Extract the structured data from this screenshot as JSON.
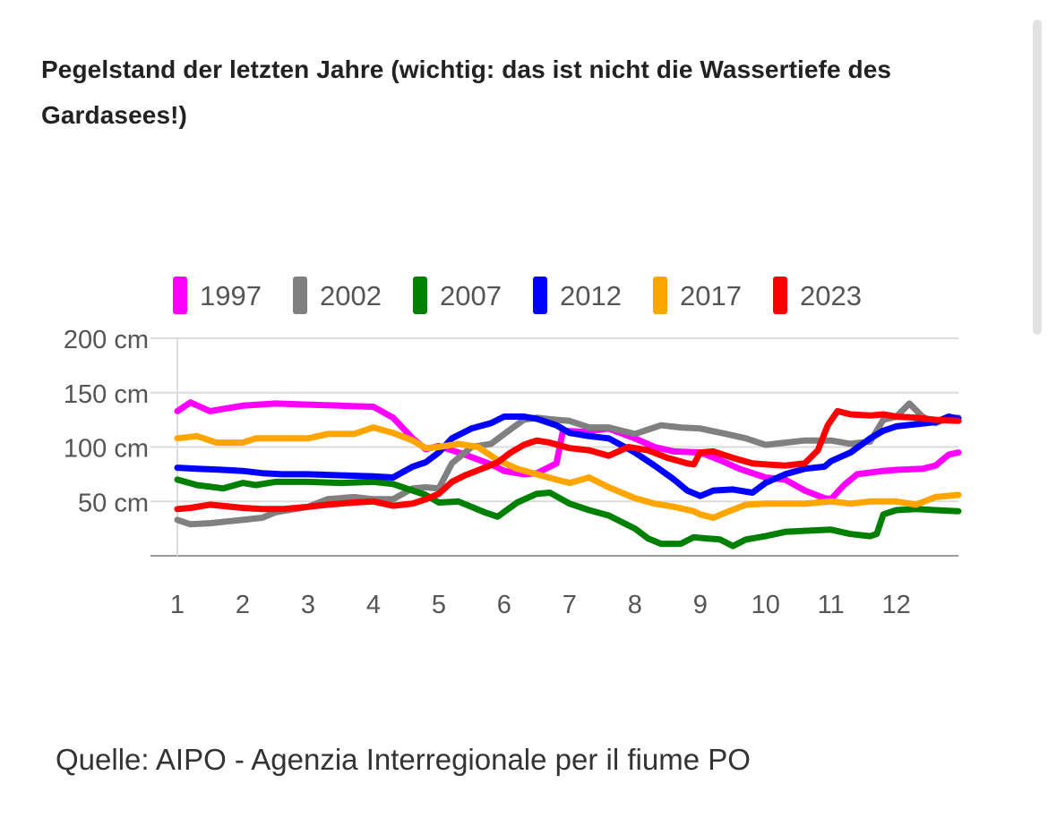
{
  "title": "Pegelstand der letzten Jahre (wichtig: das ist nicht die Wassertiefe des Gardasees!)",
  "source": "Quelle: AIPO - Agenzia Interregionale per il fiume PO",
  "chart_data": {
    "type": "line",
    "title": "Pegelstand der letzten Jahre (wichtig: das ist nicht die Wassertiefe des Gardasees!)",
    "xlabel": "",
    "ylabel": "",
    "xlim": [
      1,
      12.95
    ],
    "ylim": [
      0,
      200
    ],
    "x_ticks": [
      1,
      2,
      3,
      4,
      5,
      6,
      7,
      8,
      9,
      10,
      11,
      12
    ],
    "x_tick_labels": [
      "1",
      "2",
      "3",
      "4",
      "5",
      "6",
      "7",
      "8",
      "9",
      "10",
      "11",
      "12"
    ],
    "y_ticks": [
      50,
      100,
      150,
      200
    ],
    "y_tick_labels": [
      "50 cm",
      "100 cm",
      "150 cm",
      "200 cm"
    ],
    "grid": true,
    "legend_position": "top",
    "series": [
      {
        "name": "1997",
        "color": "#ff00ff",
        "x": [
          1,
          1.2,
          1.5,
          2,
          2.5,
          3,
          3.5,
          4,
          4.3,
          4.6,
          4.8,
          5,
          5.4,
          5.8,
          6,
          6.3,
          6.5,
          6.8,
          6.9,
          7.2,
          7.6,
          8,
          8.3,
          8.6,
          9,
          9.3,
          9.6,
          10,
          10.3,
          10.6,
          10.9,
          11,
          11.2,
          11.4,
          11.8,
          12,
          12.4,
          12.6,
          12.8,
          12.95
        ],
        "y": [
          133,
          141,
          133,
          138,
          140,
          139,
          138,
          137,
          127,
          108,
          98,
          101,
          93,
          84,
          78,
          75,
          76,
          85,
          115,
          114,
          117,
          108,
          100,
          96,
          95,
          88,
          80,
          72,
          70,
          60,
          53,
          52,
          65,
          75,
          78,
          79,
          80,
          83,
          93,
          95
        ]
      },
      {
        "name": "2002",
        "color": "#808080",
        "x": [
          1,
          1.2,
          1.5,
          2,
          2.3,
          2.5,
          3,
          3.3,
          3.7,
          4,
          4.3,
          4.6,
          4.8,
          5,
          5.2,
          5.5,
          5.8,
          6,
          6.3,
          6.5,
          6.8,
          7,
          7.3,
          7.6,
          8,
          8.4,
          8.7,
          9,
          9.4,
          9.7,
          10,
          10.3,
          10.6,
          11,
          11.3,
          11.6,
          11.8,
          12,
          12.2,
          12.4,
          12.6,
          12.8,
          12.95
        ],
        "y": [
          33,
          29,
          30,
          33,
          35,
          40,
          45,
          52,
          54,
          52,
          52,
          62,
          63,
          62,
          85,
          100,
          103,
          112,
          125,
          127,
          125,
          124,
          118,
          118,
          112,
          120,
          118,
          117,
          112,
          108,
          102,
          104,
          106,
          106,
          103,
          105,
          125,
          128,
          140,
          128,
          122,
          127,
          127
        ]
      },
      {
        "name": "2007",
        "color": "#008000",
        "x": [
          1,
          1.3,
          1.7,
          2,
          2.2,
          2.5,
          3,
          3.5,
          4,
          4.3,
          4.8,
          5,
          5.3,
          5.7,
          5.9,
          6.2,
          6.5,
          6.7,
          7,
          7.3,
          7.6,
          8,
          8.2,
          8.4,
          8.6,
          8.7,
          8.9,
          9.1,
          9.3,
          9.5,
          9.7,
          10,
          10.3,
          10.6,
          11,
          11.3,
          11.6,
          11.7,
          11.8,
          12,
          12.3,
          12.6,
          12.95
        ],
        "y": [
          70,
          65,
          62,
          67,
          65,
          68,
          68,
          67,
          68,
          66,
          56,
          49,
          50,
          40,
          36,
          49,
          57,
          58,
          48,
          42,
          37,
          25,
          16,
          11,
          11,
          11,
          17,
          16,
          15,
          9,
          15,
          18,
          22,
          23,
          24,
          20,
          18,
          20,
          38,
          42,
          43,
          42,
          41
        ]
      },
      {
        "name": "2012",
        "color": "#0000ff",
        "x": [
          1,
          1.3,
          1.7,
          2,
          2.3,
          2.6,
          3,
          3.5,
          4,
          4.3,
          4.6,
          4.8,
          5,
          5.2,
          5.5,
          5.8,
          6,
          6.3,
          6.5,
          6.8,
          7,
          7.3,
          7.6,
          8,
          8.3,
          8.6,
          8.8,
          9,
          9.2,
          9.5,
          9.8,
          10,
          10.3,
          10.6,
          10.9,
          11,
          11.3,
          11.6,
          11.8,
          12,
          12.3,
          12.6,
          12.8,
          12.95
        ],
        "y": [
          81,
          80,
          79,
          78,
          76,
          75,
          75,
          74,
          73,
          72,
          82,
          86,
          95,
          108,
          117,
          122,
          128,
          128,
          126,
          120,
          113,
          110,
          108,
          95,
          83,
          70,
          60,
          55,
          60,
          61,
          58,
          67,
          75,
          80,
          82,
          87,
          95,
          108,
          115,
          119,
          121,
          123,
          128,
          126
        ]
      },
      {
        "name": "2017",
        "color": "#ffa500",
        "x": [
          1,
          1.3,
          1.6,
          2,
          2.2,
          2.5,
          3,
          3.3,
          3.7,
          4,
          4.3,
          4.6,
          4.8,
          5,
          5.3,
          5.6,
          5.9,
          6.2,
          6.5,
          6.8,
          7,
          7.3,
          7.6,
          8,
          8.3,
          8.6,
          8.9,
          9,
          9.2,
          9.4,
          9.7,
          10,
          10.3,
          10.6,
          11,
          11.3,
          11.6,
          11.8,
          12,
          12.3,
          12.6,
          12.95
        ],
        "y": [
          108,
          110,
          104,
          104,
          108,
          108,
          108,
          112,
          112,
          118,
          113,
          106,
          99,
          100,
          103,
          100,
          88,
          80,
          75,
          70,
          67,
          72,
          63,
          53,
          48,
          45,
          41,
          38,
          35,
          40,
          47,
          48,
          48,
          48,
          50,
          48,
          50,
          50,
          50,
          47,
          54,
          56
        ]
      },
      {
        "name": "2023",
        "color": "#ff0000",
        "x": [
          1,
          1.2,
          1.5,
          2,
          2.3,
          2.6,
          3,
          3.3,
          3.7,
          4,
          4.3,
          4.6,
          4.8,
          5,
          5.2,
          5.4,
          5.7,
          5.9,
          6.1,
          6.3,
          6.5,
          6.7,
          7,
          7.3,
          7.6,
          7.9,
          8.2,
          8.5,
          8.8,
          8.9,
          9,
          9.2,
          9.5,
          9.8,
          10,
          10.3,
          10.6,
          10.8,
          10.95,
          11.1,
          11.3,
          11.6,
          11.8,
          12,
          12.3,
          12.6,
          12.95
        ],
        "y": [
          43,
          44,
          47,
          44,
          43,
          43,
          45,
          47,
          49,
          50,
          46,
          48,
          52,
          57,
          68,
          74,
          81,
          86,
          95,
          102,
          106,
          104,
          99,
          97,
          92,
          100,
          97,
          90,
          85,
          84,
          95,
          96,
          90,
          85,
          84,
          83,
          85,
          97,
          120,
          133,
          130,
          129,
          130,
          128,
          127,
          125,
          124
        ]
      }
    ]
  }
}
